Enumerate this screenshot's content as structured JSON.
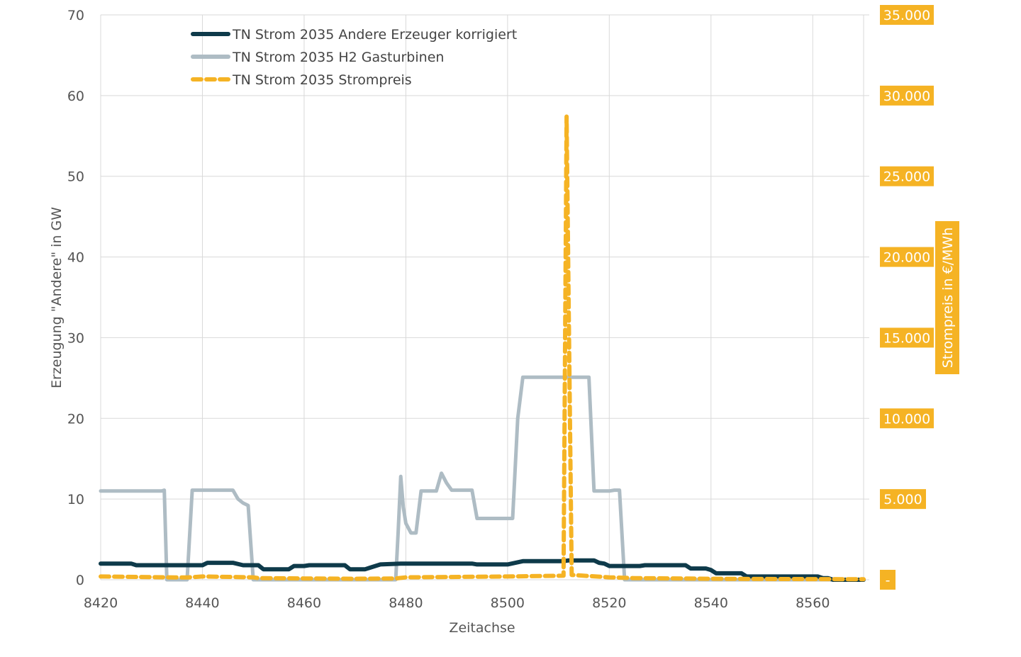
{
  "chart_data": {
    "type": "line",
    "xlabel": "Zeitachse",
    "ylabel": "Erzeugung \"Andere\" in GW",
    "y2label": "Strompreis in €/MWh",
    "xlim": [
      8420,
      8570
    ],
    "ylim": [
      0,
      70
    ],
    "y2lim": [
      0,
      35000
    ],
    "x_ticks": [
      "8420",
      "8440",
      "8460",
      "8480",
      "8500",
      "8520",
      "8540",
      "8560"
    ],
    "y_ticks": [
      "0",
      "10",
      "20",
      "30",
      "40",
      "50",
      "60",
      "70"
    ],
    "y2_ticks": [
      "-",
      "5.000",
      "10.000",
      "15.000",
      "20.000",
      "25.000",
      "30.000",
      "35.000"
    ],
    "grid": true,
    "legend_position": "top-left",
    "colors": {
      "andere": "#0e3a4a",
      "h2": "#aebcc4",
      "price": "#f5b324",
      "grid": "#d9d9d9"
    },
    "series": [
      {
        "name": "TN Strom 2035 Andere Erzeuger korrigiert",
        "axis": "left",
        "style": "solid-dark",
        "points": [
          [
            8420,
            2.0
          ],
          [
            8422,
            2.0
          ],
          [
            8426,
            2.0
          ],
          [
            8427,
            1.8
          ],
          [
            8440,
            1.8
          ],
          [
            8441,
            2.1
          ],
          [
            8446,
            2.1
          ],
          [
            8448,
            1.8
          ],
          [
            8451,
            1.8
          ],
          [
            8452,
            1.3
          ],
          [
            8457,
            1.3
          ],
          [
            8458,
            1.7
          ],
          [
            8460,
            1.7
          ],
          [
            8461,
            1.8
          ],
          [
            8468,
            1.8
          ],
          [
            8469,
            1.3
          ],
          [
            8472,
            1.3
          ],
          [
            8473,
            1.5
          ],
          [
            8475,
            1.9
          ],
          [
            8479,
            2.0
          ],
          [
            8486,
            2.0
          ],
          [
            8493,
            2.0
          ],
          [
            8494,
            1.9
          ],
          [
            8500,
            1.9
          ],
          [
            8503,
            2.3
          ],
          [
            8511,
            2.3
          ],
          [
            8512,
            2.4
          ],
          [
            8517,
            2.4
          ],
          [
            8518,
            2.1
          ],
          [
            8519,
            2.0
          ],
          [
            8520,
            1.7
          ],
          [
            8526,
            1.7
          ],
          [
            8527,
            1.8
          ],
          [
            8535,
            1.8
          ],
          [
            8536,
            1.4
          ],
          [
            8539,
            1.4
          ],
          [
            8540,
            1.2
          ],
          [
            8541,
            0.8
          ],
          [
            8546,
            0.8
          ],
          [
            8547,
            0.4
          ],
          [
            8561,
            0.4
          ],
          [
            8562,
            0.2
          ],
          [
            8563,
            0.2
          ],
          [
            8564,
            0.0
          ],
          [
            8570,
            0.0
          ]
        ]
      },
      {
        "name": "TN Strom 2035 H2 Gasturbinen",
        "axis": "left",
        "style": "solid-light",
        "points": [
          [
            8420,
            11.0
          ],
          [
            8432,
            11.0
          ],
          [
            8432.5,
            11.1
          ],
          [
            8433,
            0.0
          ],
          [
            8437,
            0.0
          ],
          [
            8438,
            11.1
          ],
          [
            8446,
            11.1
          ],
          [
            8447,
            10.0
          ],
          [
            8448,
            9.5
          ],
          [
            8449,
            9.2
          ],
          [
            8450,
            0.0
          ],
          [
            8478,
            0.0
          ],
          [
            8478.5,
            6.0
          ],
          [
            8479,
            12.8
          ],
          [
            8479.5,
            9.0
          ],
          [
            8480,
            7.0
          ],
          [
            8481,
            5.8
          ],
          [
            8482,
            5.8
          ],
          [
            8483,
            11.0
          ],
          [
            8486,
            11.0
          ],
          [
            8487,
            13.2
          ],
          [
            8488,
            12.0
          ],
          [
            8489,
            11.1
          ],
          [
            8493,
            11.1
          ],
          [
            8494,
            7.6
          ],
          [
            8500,
            7.6
          ],
          [
            8501,
            7.6
          ],
          [
            8502,
            20.0
          ],
          [
            8503,
            25.1
          ],
          [
            8516,
            25.1
          ],
          [
            8517,
            11.0
          ],
          [
            8520,
            11.0
          ],
          [
            8521,
            11.1
          ],
          [
            8522,
            11.1
          ],
          [
            8523,
            0.0
          ],
          [
            8570,
            0.0
          ]
        ]
      },
      {
        "name": "TN Strom 2035 Strompreis",
        "axis": "right",
        "style": "dashed",
        "points": [
          [
            8420,
            200
          ],
          [
            8433,
            150
          ],
          [
            8437,
            140
          ],
          [
            8440,
            200
          ],
          [
            8450,
            150
          ],
          [
            8451,
            100
          ],
          [
            8460,
            80
          ],
          [
            8470,
            60
          ],
          [
            8478,
            80
          ],
          [
            8480,
            150
          ],
          [
            8500,
            200
          ],
          [
            8511,
            250
          ],
          [
            8511.6,
            28700
          ],
          [
            8512.6,
            300
          ],
          [
            8520,
            150
          ],
          [
            8525,
            100
          ],
          [
            8540,
            60
          ],
          [
            8550,
            50
          ],
          [
            8560,
            40
          ],
          [
            8570,
            30
          ]
        ]
      }
    ]
  }
}
